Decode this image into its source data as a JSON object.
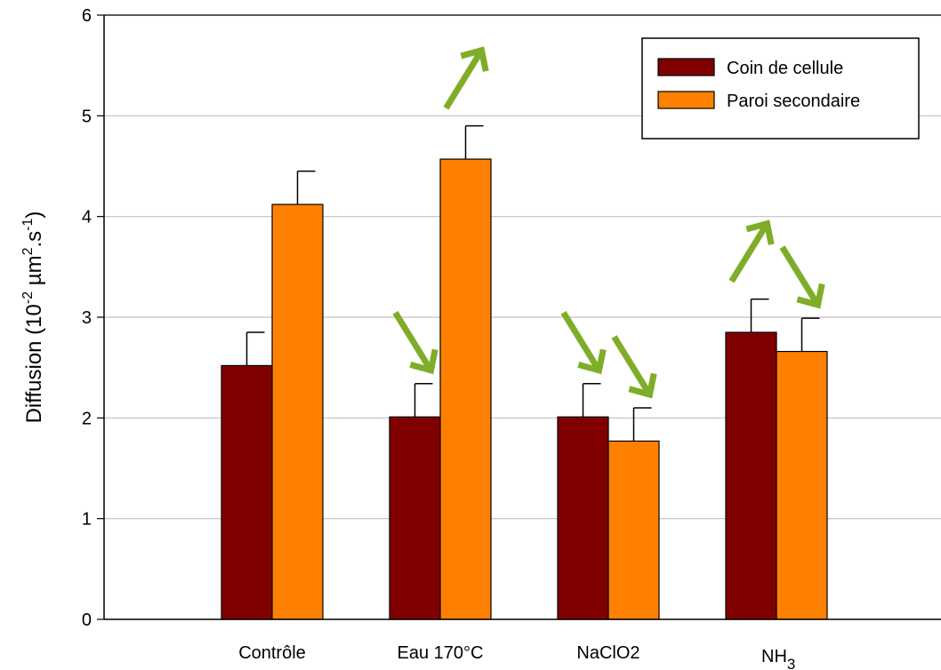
{
  "chart_data": {
    "type": "bar",
    "categories": [
      "Contrôle",
      "Eau 170°C",
      "NaClO2",
      "NH3"
    ],
    "category_labels": [
      {
        "main": "Contrôle",
        "sub": ""
      },
      {
        "main": "Eau 170°C",
        "sub": ""
      },
      {
        "main": "NaClO2",
        "sub": ""
      },
      {
        "main": "NH",
        "sub": "3"
      }
    ],
    "series": [
      {
        "name": "Coin de cellule",
        "color": "#800000",
        "values": [
          2.52,
          2.01,
          2.01,
          2.85
        ],
        "errors": [
          0.33,
          0.33,
          0.33,
          0.33
        ]
      },
      {
        "name": "Paroi secondaire",
        "color": "#FF8000",
        "values": [
          4.12,
          4.57,
          1.77,
          2.66
        ],
        "errors": [
          0.33,
          0.33,
          0.33,
          0.33
        ]
      }
    ],
    "ylabel": {
      "base": "Diffusion (10",
      "sup1": "-2",
      "mid1": " µm",
      "sup2": "2",
      "mid2": ".s",
      "sup3": "-1",
      "end": ")"
    },
    "ylim": [
      0,
      6
    ],
    "yticks": [
      "0",
      "1",
      "2",
      "3",
      "4",
      "5",
      "6"
    ],
    "grid": "horizontal",
    "legend_position": "top-right",
    "annotations": [
      {
        "category": "Eau 170°C",
        "series": "Coin de cellule",
        "direction": "down"
      },
      {
        "category": "Eau 170°C",
        "series": "Paroi secondaire",
        "direction": "up"
      },
      {
        "category": "NaClO2",
        "series": "Coin de cellule",
        "direction": "down"
      },
      {
        "category": "NaClO2",
        "series": "Paroi secondaire",
        "direction": "down"
      },
      {
        "category": "NH3",
        "series": "Coin de cellule",
        "direction": "up"
      },
      {
        "category": "NH3",
        "series": "Paroi secondaire",
        "direction": "down"
      }
    ],
    "arrow_color": "#7FAD2A"
  }
}
